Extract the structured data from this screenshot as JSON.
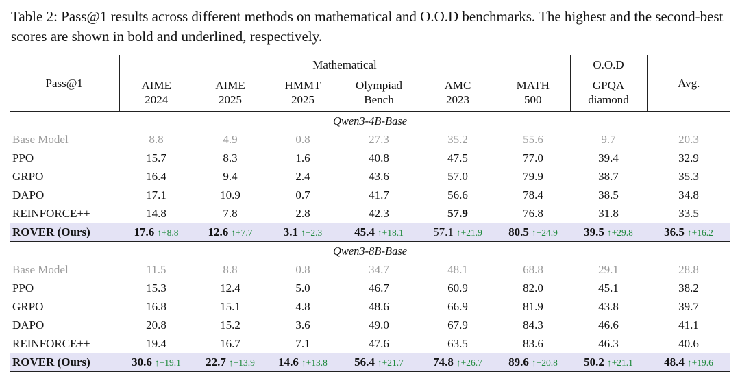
{
  "caption": "Table 2: Pass@1 results across different methods on mathematical and O.O.D benchmarks. The highest and the second-best scores are shown in bold and underlined, respectively.",
  "colors": {
    "highlight_row": "#e4e3f5",
    "delta_green": "#1f8a3d",
    "muted_gray": "#9a9a9a",
    "rule": "#222222"
  },
  "table": {
    "corner_label": "Pass@1",
    "delta_arrow": "↑",
    "groups": {
      "mathematical": "Mathematical",
      "ood": "O.O.D",
      "avg": "Avg."
    },
    "columns": [
      {
        "l1": "AIME",
        "l2": "2024"
      },
      {
        "l1": "AIME",
        "l2": "2025"
      },
      {
        "l1": "HMMT",
        "l2": "2025"
      },
      {
        "l1": "Olympiad",
        "l2": "Bench"
      },
      {
        "l1": "AMC",
        "l2": "2023"
      },
      {
        "l1": "MATH",
        "l2": "500"
      },
      {
        "l1": "GPQA",
        "l2": "diamond"
      }
    ],
    "sections": [
      {
        "title": "Qwen3-4B-Base",
        "rows": [
          {
            "method": "Base Model",
            "style": "gray",
            "cells": [
              {
                "v": "8.8"
              },
              {
                "v": "4.9"
              },
              {
                "v": "0.8"
              },
              {
                "v": "27.3"
              },
              {
                "v": "35.2"
              },
              {
                "v": "55.6"
              },
              {
                "v": "9.7"
              },
              {
                "v": "20.3"
              }
            ]
          },
          {
            "method": "PPO",
            "cells": [
              {
                "v": "15.7"
              },
              {
                "v": "8.3"
              },
              {
                "v": "1.6"
              },
              {
                "v": "40.8"
              },
              {
                "v": "47.5"
              },
              {
                "v": "77.0"
              },
              {
                "v": "39.4"
              },
              {
                "v": "32.9"
              }
            ]
          },
          {
            "method": "GRPO",
            "cells": [
              {
                "v": "16.4"
              },
              {
                "v": "9.4"
              },
              {
                "v": "2.4"
              },
              {
                "v": "43.6"
              },
              {
                "v": "57.0"
              },
              {
                "v": "79.9"
              },
              {
                "v": "38.7"
              },
              {
                "v": "35.3"
              }
            ]
          },
          {
            "method": "DAPO",
            "cells": [
              {
                "v": "17.1"
              },
              {
                "v": "10.9"
              },
              {
                "v": "0.7"
              },
              {
                "v": "41.7"
              },
              {
                "v": "56.6"
              },
              {
                "v": "78.4"
              },
              {
                "v": "38.5"
              },
              {
                "v": "34.8"
              }
            ]
          },
          {
            "method": "REINFORCE++",
            "cells": [
              {
                "v": "14.8"
              },
              {
                "v": "7.8"
              },
              {
                "v": "2.8"
              },
              {
                "v": "42.3"
              },
              {
                "v": "57.9",
                "b": true
              },
              {
                "v": "76.8"
              },
              {
                "v": "31.8"
              },
              {
                "v": "33.5"
              }
            ]
          },
          {
            "method": "ROVER (Ours)",
            "style": "highlight",
            "cells": [
              {
                "v": "17.6",
                "b": true,
                "d": "+8.8"
              },
              {
                "v": "12.6",
                "b": true,
                "d": "+7.7"
              },
              {
                "v": "3.1",
                "b": true,
                "d": "+2.3"
              },
              {
                "v": "45.4",
                "b": true,
                "d": "+18.1"
              },
              {
                "v": "57.1",
                "u": true,
                "d": "+21.9"
              },
              {
                "v": "80.5",
                "b": true,
                "d": "+24.9"
              },
              {
                "v": "39.5",
                "b": true,
                "d": "+29.8"
              },
              {
                "v": "36.5",
                "b": true,
                "d": "+16.2"
              }
            ]
          }
        ]
      },
      {
        "title": "Qwen3-8B-Base",
        "rows": [
          {
            "method": "Base Model",
            "style": "gray",
            "cells": [
              {
                "v": "11.5"
              },
              {
                "v": "8.8"
              },
              {
                "v": "0.8"
              },
              {
                "v": "34.7"
              },
              {
                "v": "48.1"
              },
              {
                "v": "68.8"
              },
              {
                "v": "29.1"
              },
              {
                "v": "28.8"
              }
            ]
          },
          {
            "method": "PPO",
            "cells": [
              {
                "v": "15.3"
              },
              {
                "v": "12.4"
              },
              {
                "v": "5.0"
              },
              {
                "v": "46.7"
              },
              {
                "v": "60.9"
              },
              {
                "v": "82.0"
              },
              {
                "v": "45.1"
              },
              {
                "v": "38.2"
              }
            ]
          },
          {
            "method": "GRPO",
            "cells": [
              {
                "v": "16.8"
              },
              {
                "v": "15.1"
              },
              {
                "v": "4.8"
              },
              {
                "v": "48.6"
              },
              {
                "v": "66.9"
              },
              {
                "v": "81.9"
              },
              {
                "v": "43.8"
              },
              {
                "v": "39.7"
              }
            ]
          },
          {
            "method": "DAPO",
            "cells": [
              {
                "v": "20.8"
              },
              {
                "v": "15.2"
              },
              {
                "v": "3.6"
              },
              {
                "v": "49.0"
              },
              {
                "v": "67.9"
              },
              {
                "v": "84.3"
              },
              {
                "v": "46.6"
              },
              {
                "v": "41.1"
              }
            ]
          },
          {
            "method": "REINFORCE++",
            "cells": [
              {
                "v": "19.4"
              },
              {
                "v": "16.7"
              },
              {
                "v": "7.1"
              },
              {
                "v": "47.6"
              },
              {
                "v": "63.5"
              },
              {
                "v": "83.6"
              },
              {
                "v": "46.3"
              },
              {
                "v": "40.6"
              }
            ]
          },
          {
            "method": "ROVER (Ours)",
            "style": "highlight",
            "cells": [
              {
                "v": "30.6",
                "b": true,
                "d": "+19.1"
              },
              {
                "v": "22.7",
                "b": true,
                "d": "+13.9"
              },
              {
                "v": "14.6",
                "b": true,
                "d": "+13.8"
              },
              {
                "v": "56.4",
                "b": true,
                "d": "+21.7"
              },
              {
                "v": "74.8",
                "b": true,
                "d": "+26.7"
              },
              {
                "v": "89.6",
                "b": true,
                "d": "+20.8"
              },
              {
                "v": "50.2",
                "b": true,
                "d": "+21.1"
              },
              {
                "v": "48.4",
                "b": true,
                "d": "+19.6"
              }
            ]
          }
        ]
      }
    ]
  }
}
